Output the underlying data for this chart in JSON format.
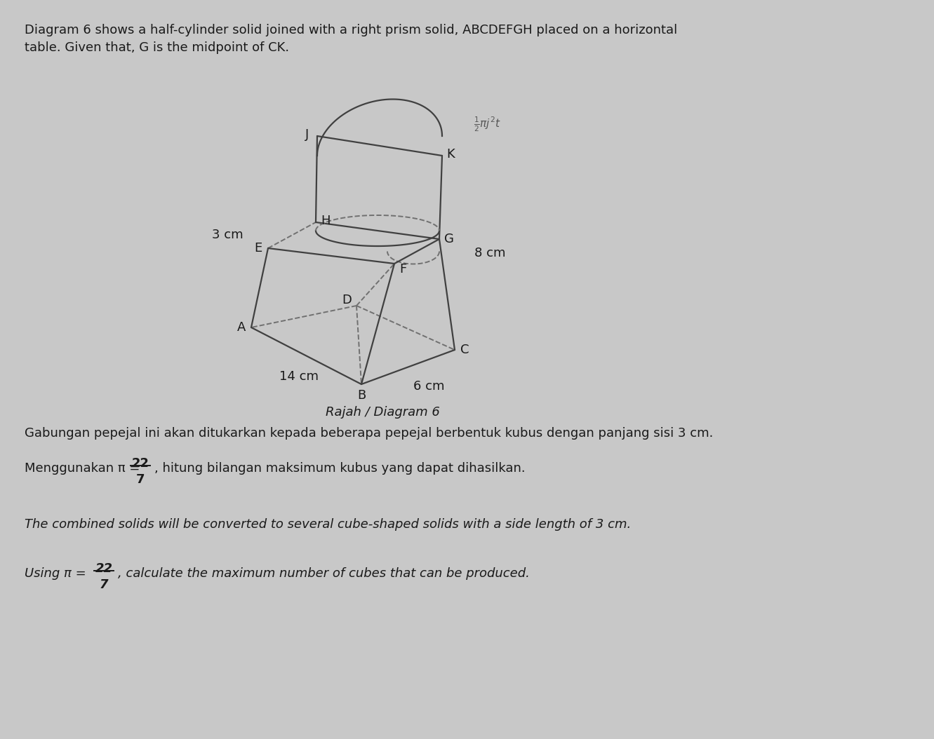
{
  "bg_color": "#c8c8c8",
  "header_line1": "Diagram 6 shows a half-cylinder solid joined with a right prism solid, ABCDEFGH placed on a horizontal",
  "header_line2": "table. Given that, G is the midpoint of CK.",
  "diagram_caption": "Rajah / Diagram 6",
  "malay_text1": "Gabungan pepejal ini akan ditukarkan kepada beberapa pepejal berbentuk kubus dengan panjang sisi 3 cm.",
  "malay_text2a": "Menggunakan π = ",
  "malay_text2b": ", hitung bilangan maksimum kubus yang dapat dihasilkan.",
  "english_text1": "The combined solids will be converted to several cube-shaped solids with a side length of 3 cm.",
  "english_text2a": "Using π = ",
  "english_text2b": ", calculate the maximum number of cubes that can be produced.",
  "dim_3cm": "3 cm",
  "dim_8cm": "8 cm",
  "dim_14cm": "14 cm",
  "dim_6cm": "6 cm",
  "label_A": "A",
  "label_B": "B",
  "label_C": "C",
  "label_D": "D",
  "label_E": "E",
  "label_F": "F",
  "label_G": "G",
  "label_H": "H",
  "label_J": "J",
  "label_K": "K",
  "annotation": "$\\frac{1}{2}\\pi j^2 t$",
  "line_color": "#404040",
  "dash_color": "#707070",
  "text_color": "#1a1a1a",
  "lw_solid": 1.6,
  "lw_dash": 1.4,
  "fs_label": 13,
  "fs_dim": 13,
  "fs_text": 13
}
